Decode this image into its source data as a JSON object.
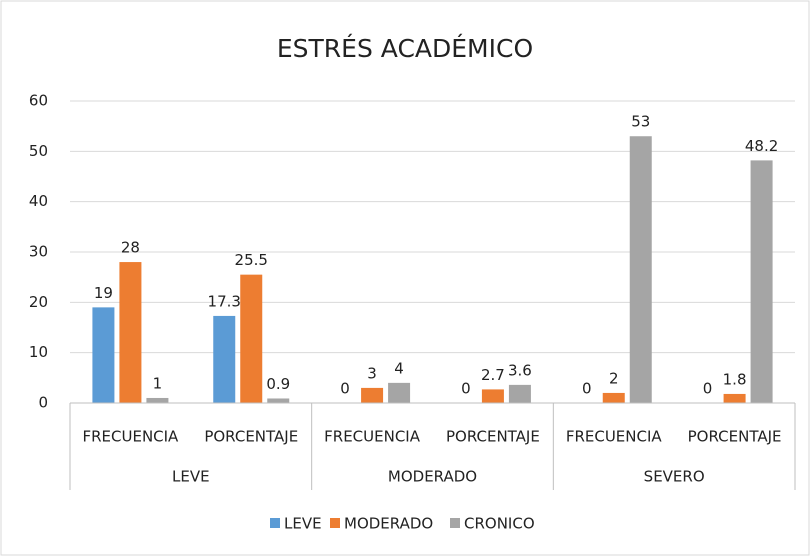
{
  "chart_data": {
    "type": "bar",
    "title": "ESTRÉS ACADÉMICO",
    "categories": [
      "FRECUENCIA",
      "PORCENTAJE",
      "FRECUENCIA",
      "PORCENTAJE",
      "FRECUENCIA",
      "PORCENTAJE"
    ],
    "category_groups": [
      "LEVE",
      "MODERADO",
      "SEVERO"
    ],
    "series": [
      {
        "name": "LEVE",
        "color": "#5b9bd5",
        "values": [
          19,
          17.3,
          0,
          0,
          0,
          0
        ]
      },
      {
        "name": "MODERADO",
        "color": "#ed7d31",
        "values": [
          28,
          25.5,
          3,
          2.7,
          2,
          1.8
        ]
      },
      {
        "name": "CRONICO",
        "color": "#a5a5a5",
        "values": [
          1,
          0.9,
          4,
          3.6,
          53,
          48.2
        ]
      }
    ],
    "ylim": [
      0,
      60
    ],
    "yticks": [
      0,
      10,
      20,
      30,
      40,
      50,
      60
    ],
    "grid": true,
    "legend": "bottom"
  }
}
